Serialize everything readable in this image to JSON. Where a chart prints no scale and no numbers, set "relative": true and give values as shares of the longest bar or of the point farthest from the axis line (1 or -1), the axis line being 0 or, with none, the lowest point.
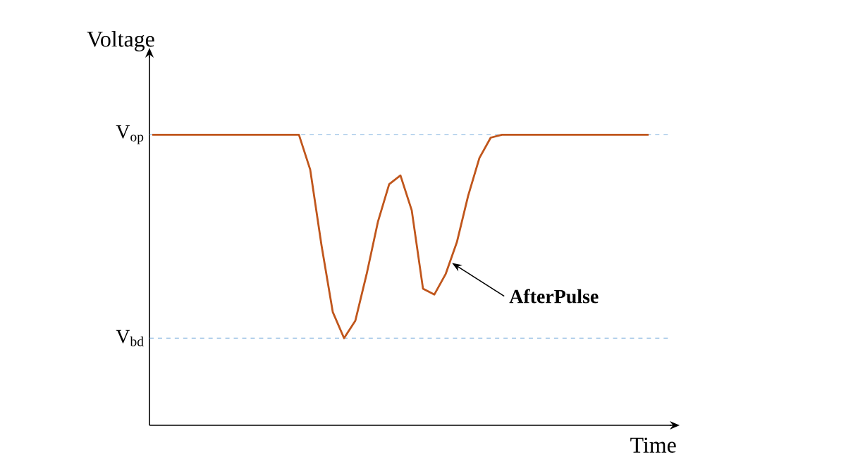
{
  "chart_data": {
    "type": "line",
    "relative": true,
    "xlabel": "Time",
    "ylabel": "Voltage",
    "categories": [
      null,
      null,
      null,
      null,
      null,
      null,
      null,
      null,
      null,
      null,
      null,
      null,
      null,
      null,
      null,
      null,
      null,
      null,
      null,
      null,
      null,
      null,
      null,
      null,
      null,
      null,
      null,
      null,
      null,
      null,
      null,
      null,
      null,
      null,
      null,
      null,
      null,
      null,
      null,
      null,
      null,
      null,
      null,
      null,
      null
    ],
    "series": [
      {
        "color": "#c0561c",
        "values": [
          1,
          1,
          1,
          1,
          1,
          1,
          1,
          1,
          1,
          1,
          1,
          1,
          1,
          1,
          0.88,
          0.62,
          0.39,
          0.3,
          0.36,
          0.52,
          0.7,
          0.83,
          0.86,
          0.74,
          0.47,
          0.45,
          0.52,
          0.63,
          0.79,
          0.92,
          0.99,
          1,
          1,
          1,
          1,
          1,
          1,
          1,
          1,
          1,
          1,
          1,
          1,
          1,
          1
        ]
      }
    ],
    "ref_lines": [
      {
        "axis": "y",
        "value": 1,
        "label": "V$_{op}$",
        "color": "#5b9bd5",
        "line_style": "dashed"
      },
      {
        "axis": "y",
        "value": 0.3,
        "label": "V$_{bd}$",
        "color": "#5b9bd5",
        "line_style": "dashed"
      }
    ],
    "annotations": [
      "AfterPulse"
    ]
  }
}
